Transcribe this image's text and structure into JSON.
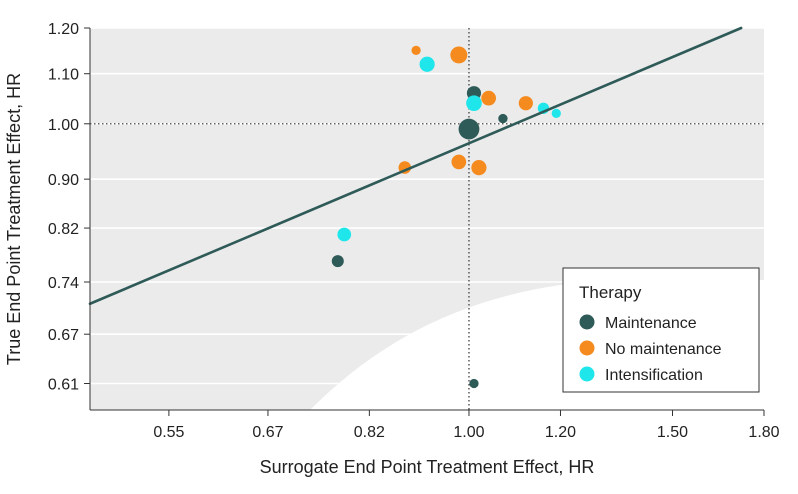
{
  "chart_data": {
    "type": "scatter",
    "xlabel": "Surrogate End Point Treatment Effect, HR",
    "ylabel": "True End Point Treatment Effect, HR",
    "x_scale": "log",
    "y_scale": "log",
    "xlim": [
      0.47,
      1.8
    ],
    "ylim": [
      0.58,
      1.2
    ],
    "x_ticks": [
      0.55,
      0.67,
      0.82,
      1.0,
      1.2,
      1.5,
      1.8
    ],
    "x_tick_labels": [
      "0.55",
      "0.67",
      "0.82",
      "1.00",
      "1.20",
      "1.50",
      "1.80"
    ],
    "y_ticks": [
      0.61,
      0.67,
      0.74,
      0.82,
      0.9,
      1.0,
      1.1,
      1.2
    ],
    "y_tick_labels": [
      "0.61",
      "0.67",
      "0.74",
      "0.82",
      "0.90",
      "1.00",
      "1.10",
      "1.20"
    ],
    "reference_lines": {
      "x": 1.0,
      "y": 1.0,
      "style": "dotted"
    },
    "regression_line": {
      "from": [
        0.47,
        0.71
      ],
      "to": [
        1.72,
        1.2
      ]
    },
    "grid": "horizontal",
    "legend": {
      "title": "Therapy",
      "position": "bottom-right",
      "entries": [
        {
          "name": "Maintenance",
          "color": "#2e5a58"
        },
        {
          "name": "No maintenance",
          "color": "#f58a1f"
        },
        {
          "name": "Intensification",
          "color": "#1fe6ea"
        }
      ]
    },
    "series": [
      {
        "name": "Maintenance",
        "color": "#2e5a58",
        "points": [
          {
            "x": 1.0,
            "y": 0.99,
            "size": 3.0
          },
          {
            "x": 1.01,
            "y": 1.06,
            "size": 1.4
          },
          {
            "x": 0.77,
            "y": 0.77,
            "size": 1.0
          },
          {
            "x": 1.07,
            "y": 1.01,
            "size": 0.6
          },
          {
            "x": 1.01,
            "y": 0.61,
            "size": 0.6
          }
        ]
      },
      {
        "name": "No maintenance",
        "color": "#f58a1f",
        "points": [
          {
            "x": 0.98,
            "y": 1.14,
            "size": 2.0
          },
          {
            "x": 0.9,
            "y": 1.15,
            "size": 0.6
          },
          {
            "x": 1.04,
            "y": 1.05,
            "size": 1.5
          },
          {
            "x": 1.12,
            "y": 1.04,
            "size": 1.4
          },
          {
            "x": 0.98,
            "y": 0.93,
            "size": 1.5
          },
          {
            "x": 1.02,
            "y": 0.92,
            "size": 1.6
          },
          {
            "x": 0.88,
            "y": 0.92,
            "size": 1.1
          }
        ]
      },
      {
        "name": "Intensification",
        "color": "#1fe6ea",
        "points": [
          {
            "x": 0.92,
            "y": 1.12,
            "size": 1.6
          },
          {
            "x": 1.01,
            "y": 1.04,
            "size": 1.7
          },
          {
            "x": 1.16,
            "y": 1.03,
            "size": 0.9
          },
          {
            "x": 1.19,
            "y": 1.02,
            "size": 0.6
          },
          {
            "x": 0.78,
            "y": 0.81,
            "size": 1.3
          }
        ]
      }
    ]
  }
}
